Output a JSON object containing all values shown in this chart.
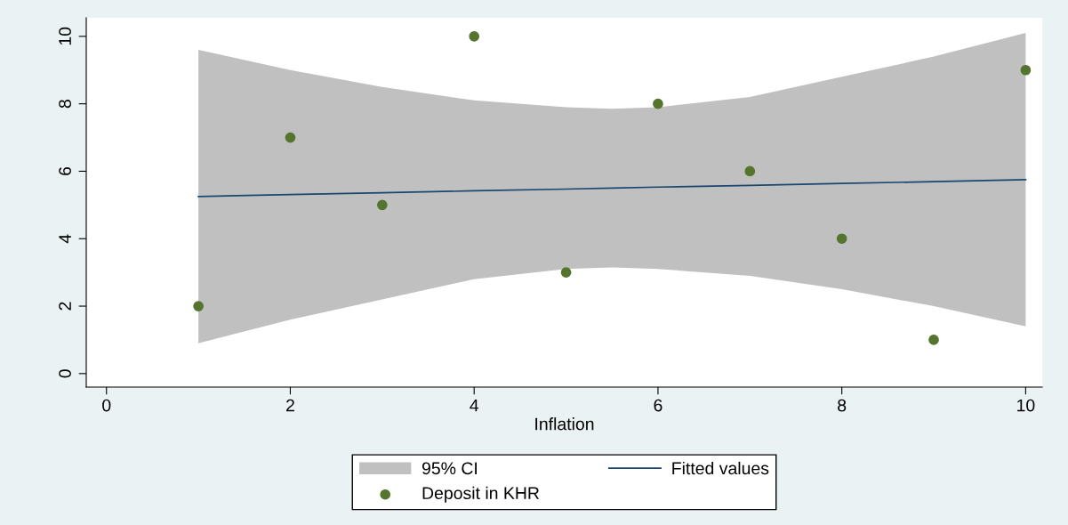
{
  "chart_data": {
    "type": "line",
    "xlabel": "Inflation",
    "xlim": [
      -0.22,
      10.18
    ],
    "xticks": [
      0,
      2,
      4,
      6,
      8,
      10
    ],
    "ylim": [
      -0.4,
      10.55
    ],
    "yticks": [
      0,
      2,
      4,
      6,
      8,
      10
    ],
    "grid": false,
    "legend": "bottom",
    "annotations": [
      "95% CI"
    ],
    "series": [
      {
        "name": "Fitted values",
        "marker": "none",
        "color": "#1a476f",
        "x": [
          1,
          2,
          3,
          4,
          5,
          5.5,
          6,
          7,
          8,
          9,
          10
        ],
        "values": [
          5.25,
          5.31,
          5.36,
          5.42,
          5.47,
          5.5,
          5.53,
          5.58,
          5.64,
          5.69,
          5.75
        ],
        "upper": [
          9.6,
          9.0,
          8.5,
          8.1,
          7.9,
          7.85,
          7.9,
          8.2,
          8.8,
          9.4,
          10.1
        ],
        "lower": [
          0.9,
          1.6,
          2.2,
          2.8,
          3.1,
          3.15,
          3.1,
          2.9,
          2.5,
          2.0,
          1.4
        ]
      },
      {
        "name": "Deposit in KHR",
        "type": "scatter",
        "marker": "circle",
        "color": "#55752f",
        "x": [
          1,
          2,
          3,
          4,
          5,
          6,
          7,
          8,
          9,
          10
        ],
        "values": [
          2,
          7,
          5,
          10,
          3,
          8,
          6,
          4,
          1,
          9
        ]
      }
    ]
  }
}
